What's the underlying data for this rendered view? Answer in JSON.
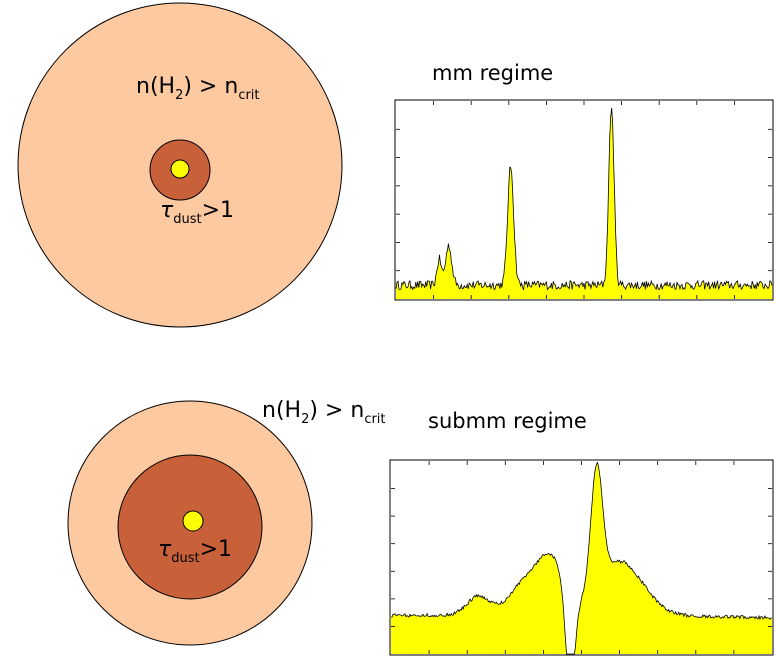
{
  "top_panel": {
    "regime_title": "mm regime",
    "density_label": {
      "main": "n(H",
      "sub": "2",
      "rel": ") > n",
      "crit": "crit"
    },
    "tau_label": {
      "symbol": "τ",
      "sub": "dust",
      "rel": ">1"
    },
    "colors": {
      "envelope": "#fdc9a0",
      "core": "#c8603a",
      "source": "#ffff00"
    },
    "spectrum": {
      "type": "line",
      "fill": "#ffff00",
      "peaks": [
        {
          "x": 0.115,
          "amp": 0.13,
          "w": 0.006
        },
        {
          "x": 0.14,
          "amp": 0.2,
          "w": 0.008
        },
        {
          "x": 0.305,
          "amp": 0.6,
          "w": 0.008
        },
        {
          "x": 0.573,
          "amp": 0.9,
          "w": 0.007
        }
      ]
    }
  },
  "bottom_panel": {
    "regime_title": "submm regime",
    "density_label": {
      "main": "n(H",
      "sub": "2",
      "rel": ") > n",
      "crit": "crit"
    },
    "tau_label": {
      "symbol": "τ",
      "sub": "dust",
      "rel": ">1"
    },
    "colors": {
      "envelope": "#fdc9a0",
      "core": "#c8603a",
      "source": "#ffff00"
    },
    "spectrum": {
      "type": "line",
      "fill": "#ffff00"
    }
  }
}
